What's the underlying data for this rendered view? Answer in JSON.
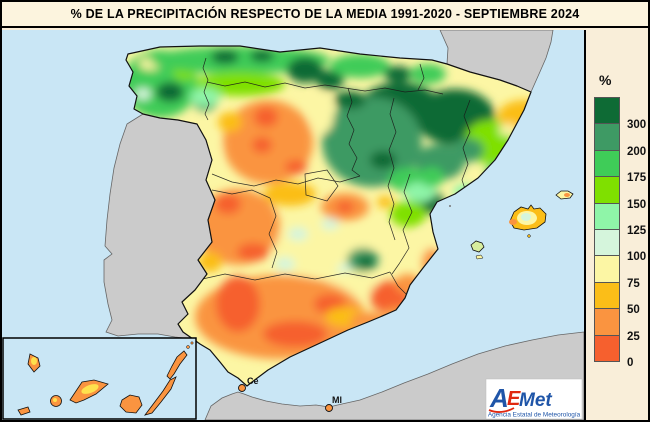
{
  "title": "% DE LA PRECIPITACIÓN RESPECTO DE LA MEDIA 1991-2020 - SEPTIEMBRE 2024",
  "legend": {
    "unit": "%",
    "bands": [
      {
        "label": "300",
        "color": "#0E6B35"
      },
      {
        "label": "200",
        "color": "#3E9A64"
      },
      {
        "label": "175",
        "color": "#3FCC58"
      },
      {
        "label": "150",
        "color": "#7FE000"
      },
      {
        "label": "125",
        "color": "#8FF5A8"
      },
      {
        "label": "100",
        "color": "#D5F5DC"
      },
      {
        "label": "75",
        "color": "#FCF6A4"
      },
      {
        "label": "50",
        "color": "#FBBE18"
      },
      {
        "label": "25",
        "color": "#FA9440"
      },
      {
        "label": "0",
        "color": "#F6602E"
      }
    ]
  },
  "map": {
    "sea_color": "#C9E6F5",
    "neighbor_color": "#CBCBCB",
    "ceuta_label": "Ce",
    "melilla_label": "Ml"
  },
  "logo": {
    "part1": "A",
    "part2": "E",
    "part3": "Met",
    "caption": "Agencia Estatal de Meteorología"
  }
}
